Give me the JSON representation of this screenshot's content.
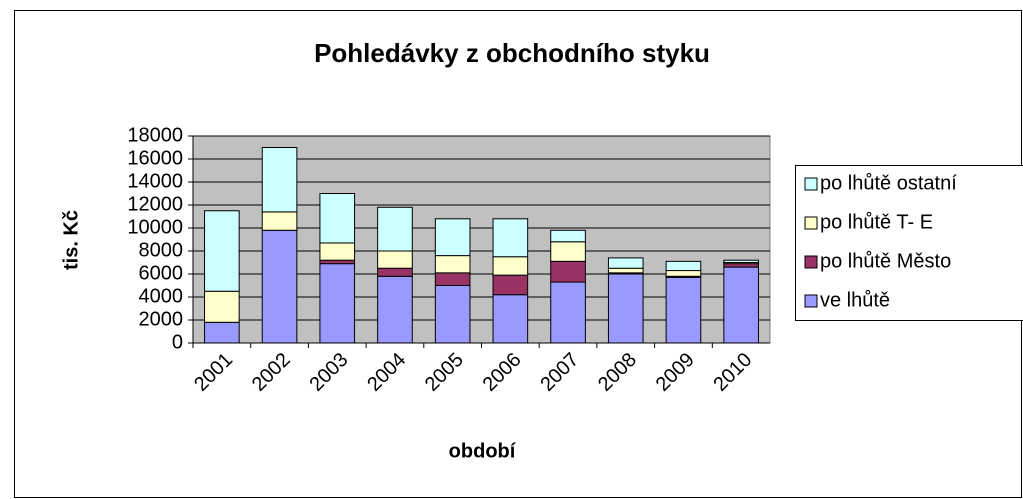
{
  "chart_data": {
    "type": "stacked_bar",
    "title": "Pohledávky z obchodního styku",
    "x_label": "období",
    "y_label": "tis. Kč",
    "categories": [
      "2001",
      "2002",
      "2003",
      "2004",
      "2005",
      "2006",
      "2007",
      "2008",
      "2009",
      "2010"
    ],
    "series": [
      {
        "name": "ve lhůtě",
        "color": "#9999ff",
        "values": [
          1800,
          9800,
          6900,
          5800,
          5000,
          4200,
          5300,
          6000,
          5700,
          6600
        ]
      },
      {
        "name": "po lhůtě Město",
        "color": "#993366",
        "values": [
          0,
          0,
          300,
          700,
          1100,
          1700,
          1800,
          100,
          100,
          300
        ]
      },
      {
        "name": "po lhůtě T- E",
        "color": "#ffffcc",
        "values": [
          2700,
          1600,
          1500,
          1500,
          1500,
          1600,
          1700,
          400,
          500,
          100
        ]
      },
      {
        "name": "po lhůtě ostatní",
        "color": "#ccffff",
        "values": [
          7000,
          5600,
          4300,
          3800,
          3200,
          3300,
          1000,
          900,
          800,
          200
        ]
      }
    ],
    "ylim": [
      0,
      18000
    ],
    "yticks": [
      0,
      2000,
      4000,
      6000,
      8000,
      10000,
      12000,
      14000,
      16000,
      18000
    ],
    "grid": true,
    "legend": "right"
  }
}
